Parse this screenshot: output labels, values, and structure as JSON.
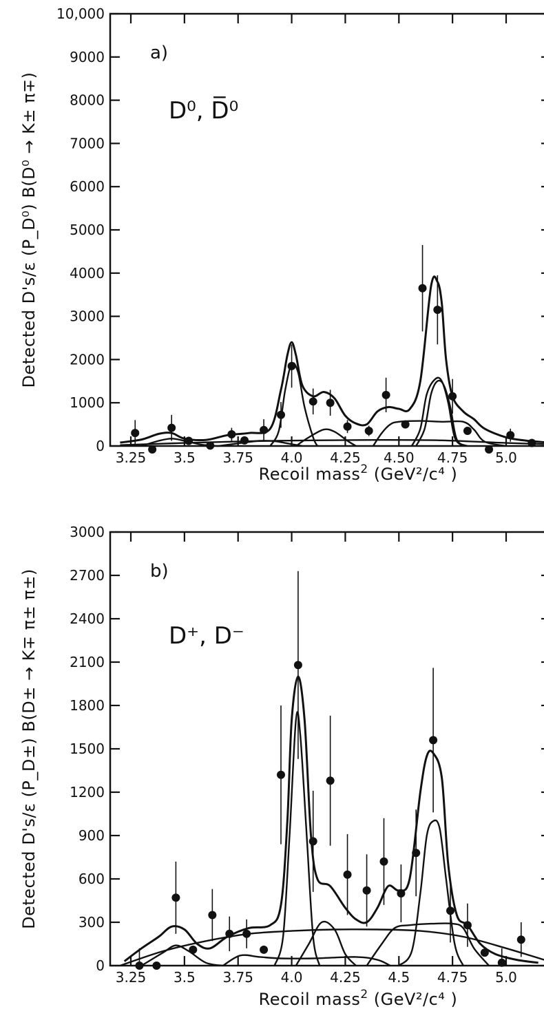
{
  "chart_data": [
    {
      "type": "scatter",
      "panel_label": "a)",
      "species_label": "D⁰, D̅⁰",
      "xlabel": "Recoil mass",
      "xlabel_units": "(GeV²/c⁴ )",
      "ylabel": "Detected D's/ε (P_D⁰) B(D⁰ → K± π∓)",
      "xlim": [
        3.2,
        5.2
      ],
      "ylim": [
        0,
        10000
      ],
      "x_ticks": [
        3.25,
        3.5,
        3.75,
        4.0,
        4.25,
        4.5,
        4.75,
        5.0
      ],
      "x_tick_labels": [
        "3.25",
        "3.5",
        "3.75",
        "4.0",
        "4.25",
        "4.50",
        "4.75",
        "5.0"
      ],
      "y_ticks": [
        0,
        1000,
        2000,
        3000,
        4000,
        5000,
        6000,
        7000,
        8000,
        9000,
        10000
      ],
      "y_tick_labels": [
        "0",
        "1000",
        "2000",
        "3000",
        "4000",
        "5000",
        "6000",
        "7000",
        "8000",
        "9000",
        "10,000"
      ],
      "points": [
        {
          "x": 3.27,
          "y": 300,
          "err": 300
        },
        {
          "x": 3.35,
          "y": -80,
          "err": 0
        },
        {
          "x": 3.44,
          "y": 420,
          "err": 300
        },
        {
          "x": 3.52,
          "y": 120,
          "err": 0
        },
        {
          "x": 3.62,
          "y": 10,
          "err": 0
        },
        {
          "x": 3.72,
          "y": 270,
          "err": 150
        },
        {
          "x": 3.78,
          "y": 130,
          "err": 0
        },
        {
          "x": 3.87,
          "y": 370,
          "err": 250
        },
        {
          "x": 3.95,
          "y": 720,
          "err": 300
        },
        {
          "x": 4.0,
          "y": 1850,
          "err": 500
        },
        {
          "x": 4.1,
          "y": 1030,
          "err": 300
        },
        {
          "x": 4.18,
          "y": 1000,
          "err": 300
        },
        {
          "x": 4.26,
          "y": 450,
          "err": 150
        },
        {
          "x": 4.36,
          "y": 350,
          "err": 120
        },
        {
          "x": 4.44,
          "y": 1180,
          "err": 400
        },
        {
          "x": 4.53,
          "y": 500,
          "err": 0
        },
        {
          "x": 4.61,
          "y": 3650,
          "err": 1000
        },
        {
          "x": 4.68,
          "y": 3150,
          "err": 800
        },
        {
          "x": 4.75,
          "y": 1150,
          "err": 400
        },
        {
          "x": 4.82,
          "y": 350,
          "err": 0
        },
        {
          "x": 4.92,
          "y": -80,
          "err": 0
        },
        {
          "x": 5.02,
          "y": 250,
          "err": 150
        },
        {
          "x": 5.12,
          "y": 70,
          "err": 0
        }
      ],
      "fit_components": [
        {
          "name": "total",
          "x": [
            3.2,
            3.3,
            3.38,
            3.44,
            3.5,
            3.6,
            3.7,
            3.8,
            3.9,
            3.95,
            3.98,
            4.0,
            4.02,
            4.05,
            4.1,
            4.15,
            4.2,
            4.25,
            4.3,
            4.35,
            4.4,
            4.45,
            4.5,
            4.55,
            4.6,
            4.65,
            4.68,
            4.7,
            4.72,
            4.75,
            4.8,
            4.85,
            4.9,
            5.0,
            5.1,
            5.2
          ],
          "y": [
            80,
            150,
            280,
            300,
            170,
            140,
            250,
            300,
            400,
            1300,
            2100,
            2400,
            2100,
            1400,
            1150,
            1250,
            1100,
            700,
            520,
            500,
            800,
            900,
            860,
            850,
            1500,
            3700,
            3800,
            3300,
            2000,
            1150,
            800,
            620,
            400,
            200,
            120,
            80
          ]
        },
        {
          "name": "peak-4.0",
          "x": [
            3.9,
            3.94,
            3.97,
            4.0,
            4.03,
            4.06,
            4.1,
            4.12
          ],
          "y": [
            0,
            350,
            1300,
            1900,
            1700,
            900,
            200,
            0
          ]
        },
        {
          "name": "peak-4.15",
          "x": [
            4.02,
            4.08,
            4.15,
            4.2,
            4.26,
            4.3
          ],
          "y": [
            0,
            200,
            380,
            330,
            120,
            0
          ]
        },
        {
          "name": "peak-4.68a",
          "x": [
            4.56,
            4.6,
            4.63,
            4.67,
            4.7,
            4.73,
            4.76,
            4.8
          ],
          "y": [
            0,
            400,
            1200,
            1550,
            1500,
            1000,
            200,
            0
          ]
        },
        {
          "name": "peak-4.68b",
          "x": [
            4.58,
            4.62,
            4.65,
            4.68,
            4.71,
            4.74,
            4.77,
            4.82
          ],
          "y": [
            0,
            400,
            1200,
            1500,
            1400,
            900,
            150,
            0
          ]
        },
        {
          "name": "plateau",
          "x": [
            4.38,
            4.42,
            4.46,
            4.5,
            4.6,
            4.7,
            4.8,
            4.85,
            4.9,
            5.0
          ],
          "y": [
            0,
            300,
            500,
            560,
            580,
            560,
            560,
            380,
            100,
            0
          ]
        },
        {
          "name": "background",
          "x": [
            3.2,
            3.5,
            3.8,
            4.1,
            4.4,
            4.7,
            5.0,
            5.2
          ],
          "y": [
            20,
            70,
            110,
            130,
            140,
            130,
            70,
            40
          ]
        },
        {
          "name": "low-bump",
          "x": [
            3.3,
            3.38,
            3.44,
            3.5,
            3.58,
            3.66
          ],
          "y": [
            0,
            120,
            170,
            120,
            30,
            0
          ]
        },
        {
          "name": "mid-bump",
          "x": [
            3.66,
            3.75,
            3.85,
            3.92,
            3.98,
            4.05
          ],
          "y": [
            0,
            60,
            120,
            110,
            60,
            0
          ]
        }
      ]
    },
    {
      "type": "scatter",
      "panel_label": "b)",
      "species_label": "D⁺, D⁻",
      "xlabel": "Recoil mass",
      "xlabel_units": "(GeV²/c⁴ )",
      "ylabel": "Detected D's/ε (P_D±) B(D± → K∓ π± π±)",
      "xlim": [
        3.2,
        5.2
      ],
      "ylim": [
        0,
        3000
      ],
      "x_ticks": [
        3.25,
        3.5,
        3.75,
        4.0,
        4.25,
        4.5,
        4.75,
        5.0
      ],
      "x_tick_labels": [
        "3.25",
        "3.5",
        "3.75",
        "4.0",
        "4.25",
        "4.5",
        "4.75",
        "5.0"
      ],
      "y_ticks": [
        0,
        300,
        600,
        900,
        1200,
        1500,
        1800,
        2100,
        2400,
        2700,
        3000
      ],
      "y_tick_labels": [
        "0",
        "300",
        "600",
        "900",
        "1200",
        "1500",
        "1800",
        "2100",
        "2400",
        "2700",
        "3000"
      ],
      "points": [
        {
          "x": 3.29,
          "y": 0,
          "err": 120
        },
        {
          "x": 3.37,
          "y": 0,
          "err": 0
        },
        {
          "x": 3.46,
          "y": 470,
          "err": 250
        },
        {
          "x": 3.54,
          "y": 110,
          "err": 0
        },
        {
          "x": 3.63,
          "y": 350,
          "err": 180
        },
        {
          "x": 3.71,
          "y": 220,
          "err": 120
        },
        {
          "x": 3.79,
          "y": 220,
          "err": 100
        },
        {
          "x": 3.87,
          "y": 110,
          "err": 0
        },
        {
          "x": 3.95,
          "y": 1320,
          "err": 480
        },
        {
          "x": 4.03,
          "y": 2080,
          "err": 650
        },
        {
          "x": 4.1,
          "y": 860,
          "err": 350
        },
        {
          "x": 4.18,
          "y": 1280,
          "err": 450
        },
        {
          "x": 4.26,
          "y": 630,
          "err": 280
        },
        {
          "x": 4.35,
          "y": 520,
          "err": 250
        },
        {
          "x": 4.43,
          "y": 720,
          "err": 300
        },
        {
          "x": 4.51,
          "y": 500,
          "err": 200
        },
        {
          "x": 4.58,
          "y": 780,
          "err": 300
        },
        {
          "x": 4.66,
          "y": 1560,
          "err": 500
        },
        {
          "x": 4.74,
          "y": 380,
          "err": 220
        },
        {
          "x": 4.82,
          "y": 280,
          "err": 150
        },
        {
          "x": 4.9,
          "y": 90,
          "err": 0
        },
        {
          "x": 4.98,
          "y": 20,
          "err": 100
        },
        {
          "x": 5.07,
          "y": 180,
          "err": 120
        }
      ],
      "fit_components": [
        {
          "name": "total",
          "x": [
            3.22,
            3.3,
            3.38,
            3.44,
            3.5,
            3.56,
            3.62,
            3.7,
            3.8,
            3.9,
            3.95,
            3.98,
            4.0,
            4.03,
            4.06,
            4.09,
            4.12,
            4.18,
            4.25,
            4.3,
            4.35,
            4.4,
            4.45,
            4.5,
            4.55,
            4.6,
            4.63,
            4.66,
            4.7,
            4.73,
            4.77,
            4.82,
            4.88,
            4.95,
            5.05,
            5.15
          ],
          "y": [
            30,
            120,
            200,
            270,
            250,
            150,
            120,
            200,
            260,
            280,
            420,
            1000,
            1700,
            2000,
            1700,
            900,
            600,
            550,
            400,
            320,
            300,
            400,
            550,
            520,
            600,
            1200,
            1450,
            1470,
            1300,
            700,
            350,
            280,
            150,
            80,
            40,
            20
          ]
        },
        {
          "name": "peak-4.03",
          "x": [
            3.92,
            3.96,
            3.99,
            4.02,
            4.04,
            4.07,
            4.1,
            4.13
          ],
          "y": [
            0,
            200,
            900,
            1700,
            1600,
            900,
            200,
            0
          ]
        },
        {
          "name": "peak-4.65",
          "x": [
            4.5,
            4.56,
            4.6,
            4.63,
            4.66,
            4.69,
            4.72,
            4.76,
            4.8
          ],
          "y": [
            0,
            100,
            500,
            900,
            1000,
            950,
            600,
            150,
            0
          ]
        },
        {
          "name": "broad-4.65",
          "x": [
            4.35,
            4.42,
            4.48,
            4.55,
            4.65,
            4.75,
            4.8,
            4.85,
            4.92
          ],
          "y": [
            0,
            150,
            260,
            280,
            290,
            290,
            260,
            120,
            0
          ]
        },
        {
          "name": "peak-4.15",
          "x": [
            4.02,
            4.08,
            4.14,
            4.2,
            4.25,
            4.3
          ],
          "y": [
            0,
            150,
            300,
            250,
            80,
            0
          ]
        },
        {
          "name": "background",
          "x": [
            3.2,
            3.4,
            3.6,
            3.8,
            4.0,
            4.2,
            4.4,
            4.6,
            4.8,
            5.0,
            5.2
          ],
          "y": [
            0,
            100,
            170,
            220,
            240,
            250,
            250,
            240,
            200,
            120,
            30
          ]
        },
        {
          "name": "low-bump",
          "x": [
            3.3,
            3.4,
            3.46,
            3.52,
            3.6,
            3.68
          ],
          "y": [
            0,
            90,
            140,
            100,
            20,
            0
          ]
        },
        {
          "name": "mid-bump",
          "x": [
            3.68,
            3.76,
            3.85,
            3.95,
            4.1,
            4.3,
            4.4,
            4.46
          ],
          "y": [
            0,
            70,
            60,
            50,
            50,
            60,
            40,
            0
          ]
        }
      ]
    }
  ]
}
